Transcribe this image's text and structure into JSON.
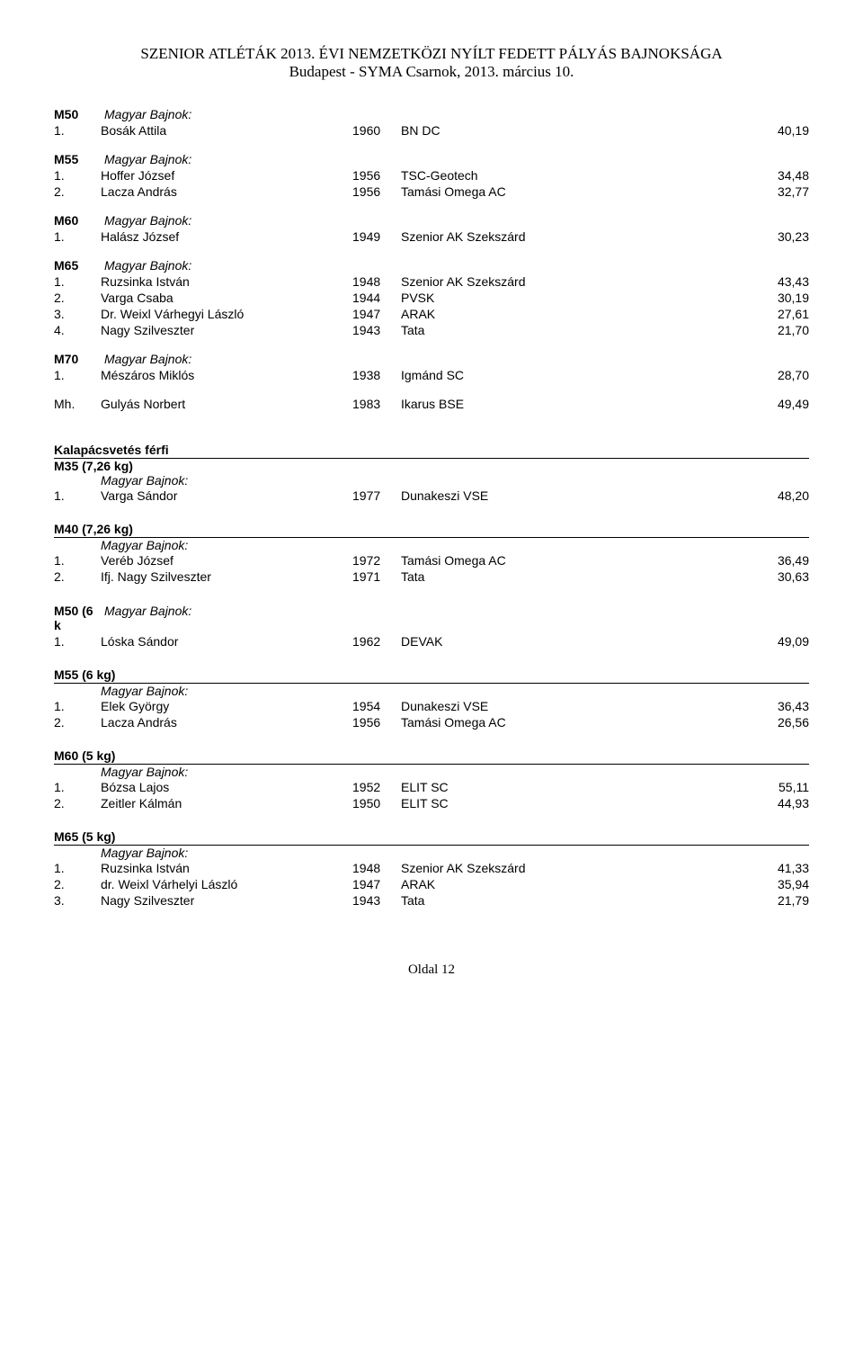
{
  "header": {
    "line1": "SZENIOR ATLÉTÁK 2013. ÉVI NEMZETKÖZI NYÍLT FEDETT PÁLYÁS BAJNOKSÁGA",
    "line2": "Budapest - SYMA Csarnok, 2013. március 10."
  },
  "groups_top": [
    {
      "label": "M50",
      "note": "Magyar Bajnok:",
      "rows": [
        {
          "pos": "1.",
          "name": "Bosák Attila",
          "year": "1960",
          "club": "BN DC",
          "mark": "40,19"
        }
      ]
    },
    {
      "label": "M55",
      "note": "Magyar Bajnok:",
      "rows": [
        {
          "pos": "1.",
          "name": "Hoffer József",
          "year": "1956",
          "club": "TSC-Geotech",
          "mark": "34,48"
        },
        {
          "pos": "2.",
          "name": "Lacza András",
          "year": "1956",
          "club": "Tamási Omega AC",
          "mark": "32,77"
        }
      ]
    },
    {
      "label": "M60",
      "note": "Magyar Bajnok:",
      "rows": [
        {
          "pos": "1.",
          "name": "Halász József",
          "year": "1949",
          "club": "Szenior AK Szekszárd",
          "mark": "30,23"
        }
      ]
    },
    {
      "label": "M65",
      "note": "Magyar Bajnok:",
      "rows": [
        {
          "pos": "1.",
          "name": "Ruzsinka István",
          "year": "1948",
          "club": "Szenior AK Szekszárd",
          "mark": "43,43"
        },
        {
          "pos": "2.",
          "name": "Varga Csaba",
          "year": "1944",
          "club": "PVSK",
          "mark": "30,19"
        },
        {
          "pos": "3.",
          "name": "Dr. Weixl Várhegyi László",
          "year": "1947",
          "club": "ARAK",
          "mark": "27,61"
        },
        {
          "pos": "4.",
          "name": "Nagy Szilveszter",
          "year": "1943",
          "club": "Tata",
          "mark": "21,70"
        }
      ]
    },
    {
      "label": "M70",
      "note": "Magyar Bajnok:",
      "rows": [
        {
          "pos": "1.",
          "name": "Mészáros Miklós",
          "year": "1938",
          "club": "Igmánd SC",
          "mark": "28,70"
        }
      ]
    }
  ],
  "mh_row": {
    "pos": "Mh.",
    "name": "Gulyás Norbert",
    "year": "1983",
    "club": "Ikarus BSE",
    "mark": "49,49"
  },
  "section_title": "Kalapácsvetés férfi",
  "section_first_sub": {
    "label": "M35 (7,26 kg)",
    "note": "Magyar Bajnok:",
    "rows": [
      {
        "pos": "1.",
        "name": "Varga Sándor",
        "year": "1977",
        "club": "Dunakeszi VSE",
        "mark": "48,20"
      }
    ]
  },
  "section_subs": [
    {
      "underline": true,
      "label": "M40 (7,26 kg)",
      "note": "Magyar Bajnok:",
      "rows": [
        {
          "pos": "1.",
          "name": "Veréb József",
          "year": "1972",
          "club": "Tamási Omega AC",
          "mark": "36,49"
        },
        {
          "pos": "2.",
          "name": "Ifj. Nagy Szilveszter",
          "year": "1971",
          "club": "Tata",
          "mark": "30,63"
        }
      ]
    },
    {
      "underline": false,
      "pos_combined": "M50 (6 k",
      "note_inline": "Magyar Bajnok:",
      "rows": [
        {
          "pos": "1.",
          "name": "Lóska Sándor",
          "year": "1962",
          "club": "DEVAK",
          "mark": "49,09"
        }
      ]
    },
    {
      "underline": true,
      "label": "M55 (6 kg)",
      "note": "Magyar Bajnok:",
      "rows": [
        {
          "pos": "1.",
          "name": "Elek György",
          "year": "1954",
          "club": "Dunakeszi VSE",
          "mark": "36,43"
        },
        {
          "pos": "2.",
          "name": "Lacza András",
          "year": "1956",
          "club": "Tamási Omega AC",
          "mark": "26,56"
        }
      ]
    },
    {
      "underline": true,
      "label": "M60 (5 kg)",
      "note": "Magyar Bajnok:",
      "rows": [
        {
          "pos": "1.",
          "name": "Bózsa Lajos",
          "year": "1952",
          "club": "ELIT SC",
          "mark": "55,11"
        },
        {
          "pos": "2.",
          "name": "Zeitler Kálmán",
          "year": "1950",
          "club": "ELIT SC",
          "mark": "44,93"
        }
      ]
    },
    {
      "underline": true,
      "label": "M65 (5 kg)",
      "note": "Magyar Bajnok:",
      "rows": [
        {
          "pos": "1.",
          "name": "Ruzsinka István",
          "year": "1948",
          "club": "Szenior AK Szekszárd",
          "mark": "41,33"
        },
        {
          "pos": "2.",
          "name": "dr. Weixl Várhelyi László",
          "year": "1947",
          "club": "ARAK",
          "mark": "35,94"
        },
        {
          "pos": "3.",
          "name": "Nagy Szilveszter",
          "year": "1943",
          "club": "Tata",
          "mark": "21,79"
        }
      ]
    }
  ],
  "footer": "Oldal 12"
}
